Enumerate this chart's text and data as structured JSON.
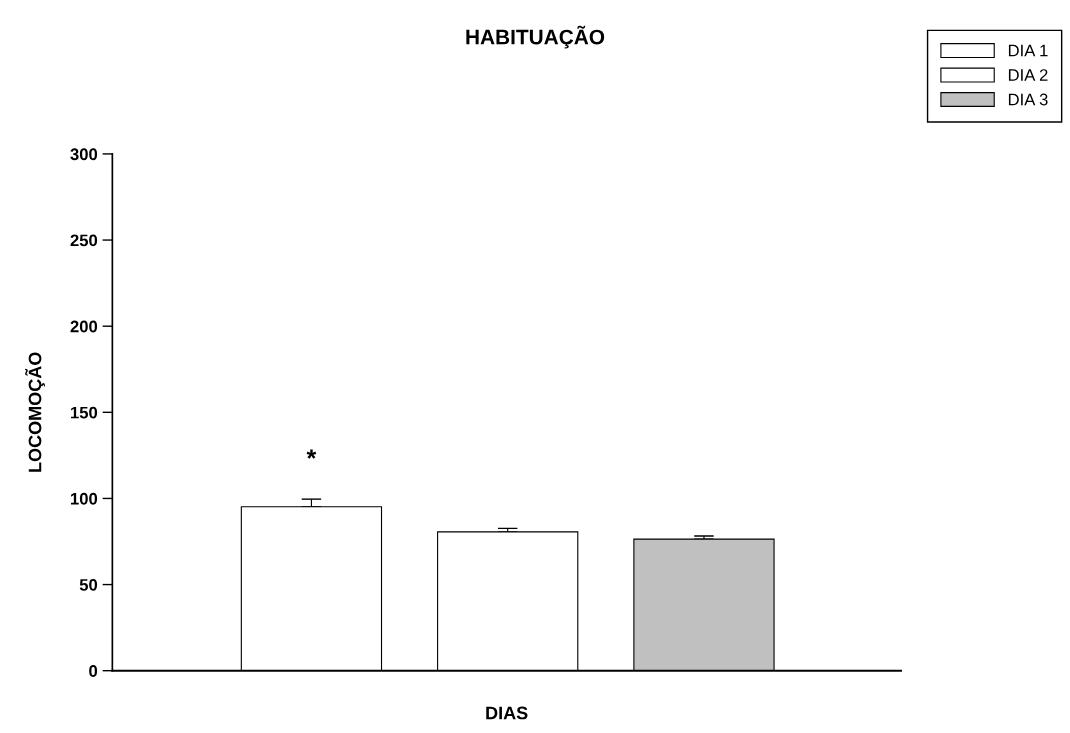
{
  "chart_data": {
    "type": "bar",
    "title": "HABITUAÇÃO",
    "xlabel": "DIAS",
    "ylabel": "LOCOMOÇÃO",
    "categories": [
      null
    ],
    "series": [
      {
        "name": "DIA 1",
        "color": "#ffffff",
        "values": [
          95.2
        ],
        "errors": [
          4.4
        ]
      },
      {
        "name": "DIA 2",
        "color": "#ffffff",
        "values": [
          80.6
        ],
        "errors": [
          2
        ]
      },
      {
        "name": "DIA 3",
        "color": "#c0c0c0",
        "values": [
          76.4
        ],
        "errors": [
          1.8
        ]
      }
    ],
    "ylim": [
      0,
      300
    ],
    "yticks": [
      0,
      50,
      100,
      150,
      200,
      250,
      300
    ],
    "annotations": [
      "*"
    ],
    "grid": false,
    "legend": "top right"
  }
}
